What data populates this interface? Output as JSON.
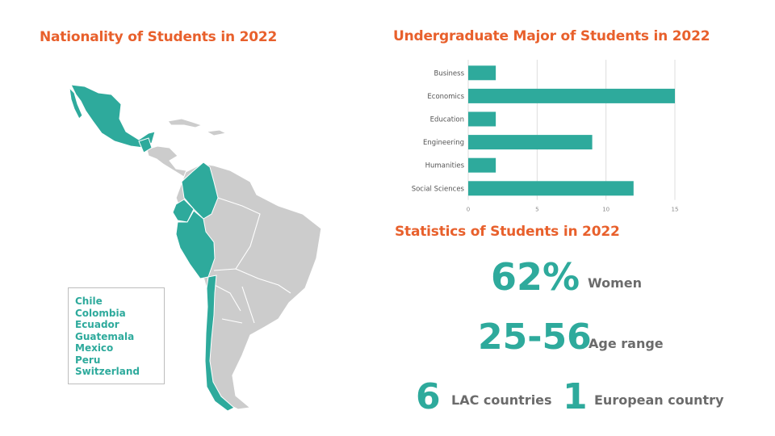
{
  "map": {
    "title": "Nationality of Students in 2022",
    "legend": [
      "Chile",
      "Colombia",
      "Ecuador",
      "Guatemala",
      "Mexico",
      "Peru",
      "Switzerland"
    ],
    "highlight_color": "#2eaa9c",
    "base_color": "#cccccc"
  },
  "bar": {
    "title": "Undergraduate Major of Students in 2022"
  },
  "stats": {
    "title": "Statistics of Students in 2022",
    "women_value": "62%",
    "women_label": "Women",
    "age_value": "25-56",
    "age_label": "Age range",
    "lac_value": "6",
    "lac_label": "LAC countries",
    "eu_value": "1",
    "eu_label": "European country"
  },
  "colors": {
    "title": "#e8602c",
    "accent": "#2eaa9c",
    "label": "#6b6b6b"
  },
  "chart_data": {
    "type": "bar",
    "orientation": "horizontal",
    "title": "Undergraduate Major of Students in 2022",
    "categories": [
      "Business",
      "Economics",
      "Education",
      "Engineering",
      "Humanities",
      "Social Sciences"
    ],
    "values": [
      2,
      15,
      2,
      9,
      2,
      12
    ],
    "xticks": [
      0,
      5,
      10,
      15
    ],
    "xlim": [
      0,
      15
    ],
    "grid": true,
    "color": "#2eaa9c"
  }
}
